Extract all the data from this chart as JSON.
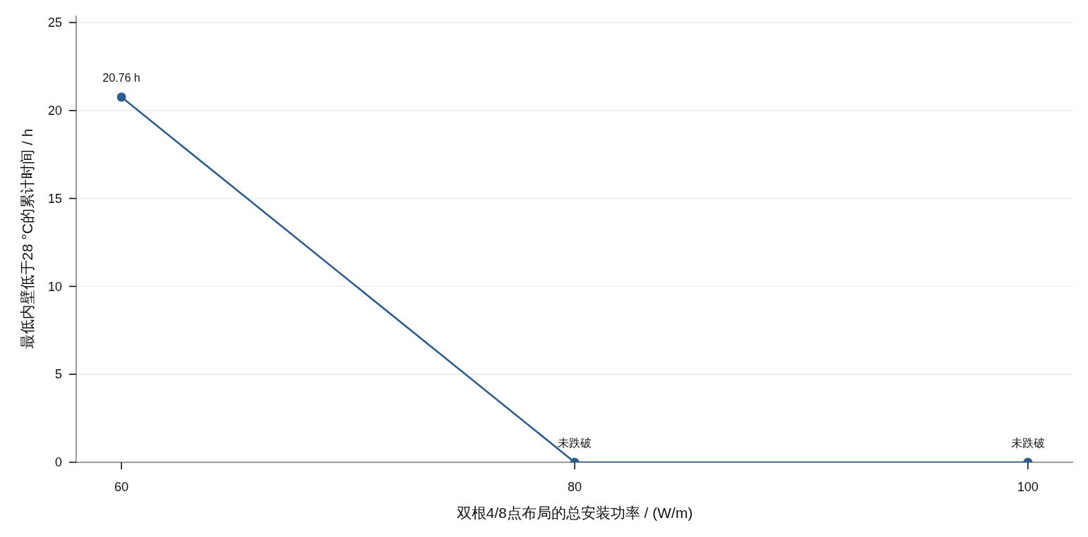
{
  "chart_data": {
    "type": "line",
    "xlabel": "双根4/8点布局的总安装功率 / (W/m)",
    "ylabel": "最低内壁低于28 °C的累计时间 / h",
    "x": [
      60,
      80,
      100
    ],
    "series": [
      {
        "color": "#2e5e8e",
        "values": [
          20.76,
          0,
          0
        ],
        "value_labels": [
          "20.76 h",
          "未跌破",
          "未跌破"
        ]
      }
    ],
    "xlim": [
      58,
      102
    ],
    "xticks": [
      60,
      80,
      100
    ],
    "ylim": [
      0,
      25.4
    ],
    "yticks": [
      0,
      5,
      10,
      15,
      20,
      25
    ],
    "grid": "y",
    "marker": "circle",
    "line_style": "solid"
  }
}
